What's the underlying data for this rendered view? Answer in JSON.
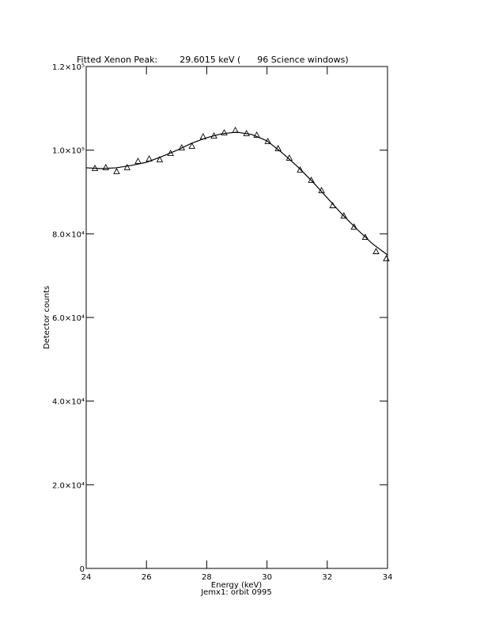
{
  "chart_data": {
    "type": "scatter",
    "title": "Fitted Xenon Peak:        29.6015 keV (      96 Science windows)",
    "xlabel": "Energy (keV)",
    "ylabel": "Detector counts",
    "footer": "Jemx1: orbit 0995",
    "xlim": [
      24,
      34
    ],
    "xticks": [
      24,
      26,
      28,
      30,
      32,
      34
    ],
    "ylim": [
      0,
      120000
    ],
    "yticks": [
      0,
      {
        "value": 20000,
        "label": "2.0×10⁴"
      },
      {
        "value": 40000,
        "label": "4.0×10⁴"
      },
      {
        "value": 60000,
        "label": "6.0×10⁴"
      },
      {
        "value": 80000,
        "label": "8.0×10⁴"
      },
      {
        "value": 100000,
        "label": "1.0×10⁵"
      },
      {
        "value": 120000,
        "label": "1.2×10⁵"
      }
    ],
    "color": "#000000",
    "points": {
      "x": [
        24.29,
        24.65,
        25.01,
        25.36,
        25.72,
        26.09,
        26.44,
        26.8,
        27.17,
        27.51,
        27.88,
        28.24,
        28.58,
        28.95,
        29.32,
        29.66,
        30.03,
        30.37,
        30.74,
        31.1,
        31.47,
        31.81,
        32.18,
        32.55,
        32.89,
        33.26,
        33.62,
        33.96
      ],
      "y": [
        95600,
        95780,
        94830,
        95780,
        97300,
        97860,
        97670,
        99190,
        100510,
        100890,
        103160,
        103350,
        104110,
        104680,
        103920,
        103540,
        102030,
        100320,
        98050,
        95210,
        92750,
        90290,
        86690,
        84230,
        81580,
        79120,
        75710,
        74010
      ]
    },
    "fit": {
      "x": [
        24,
        24.5,
        25,
        25.5,
        26,
        26.5,
        27,
        27.5,
        28,
        28.5,
        29,
        29.5,
        30,
        30.5,
        31,
        31.5,
        32,
        32.5,
        33,
        33.5,
        34
      ],
      "y": [
        95780,
        95590,
        95780,
        96350,
        97100,
        98430,
        99940,
        101650,
        102980,
        103920,
        104300,
        103730,
        102220,
        99380,
        96160,
        92560,
        88590,
        84610,
        81010,
        77610,
        74960
      ]
    }
  }
}
